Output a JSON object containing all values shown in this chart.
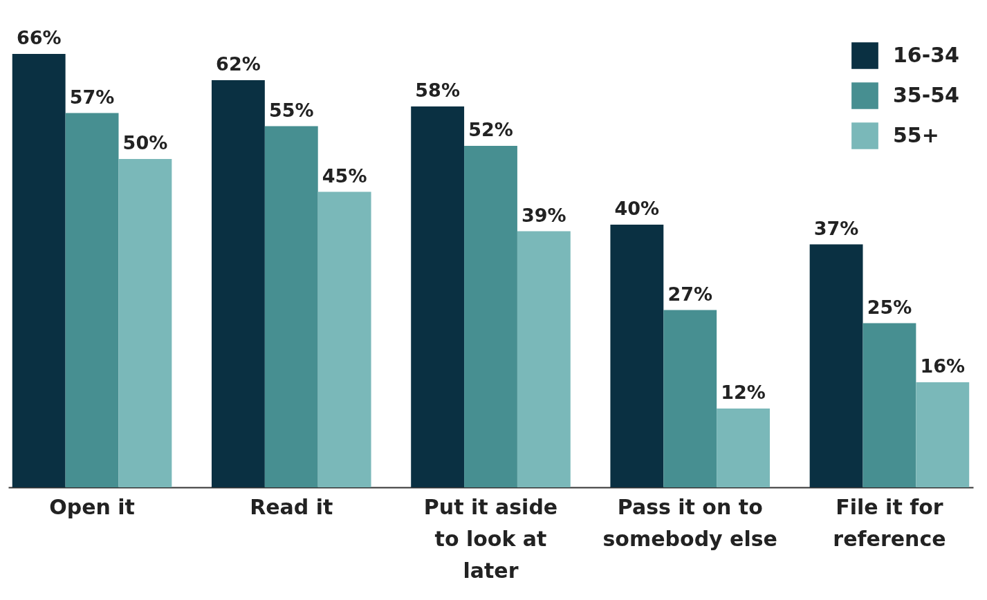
{
  "chart_data": {
    "type": "bar",
    "categories": [
      "Open it",
      "Read it",
      "Put it aside to look at later",
      "Pass it on to somebody else",
      "File it for reference"
    ],
    "series": [
      {
        "name": "16-34",
        "color": "#0a3042",
        "values": [
          66,
          62,
          58,
          40,
          37
        ],
        "value_labels": [
          "66%",
          "62%",
          "58%",
          "40%",
          "37%"
        ]
      },
      {
        "name": "35-54",
        "color": "#478f91",
        "values": [
          57,
          55,
          52,
          27,
          25
        ],
        "value_labels": [
          "57%",
          "55%",
          "52%",
          "27%",
          "25%"
        ]
      },
      {
        "name": "55+",
        "color": "#7ab8b9",
        "values": [
          50,
          45,
          39,
          12,
          16
        ],
        "value_labels": [
          "50%",
          "45%",
          "39%",
          "12%",
          "16%"
        ]
      }
    ],
    "legend": "top right"
  }
}
